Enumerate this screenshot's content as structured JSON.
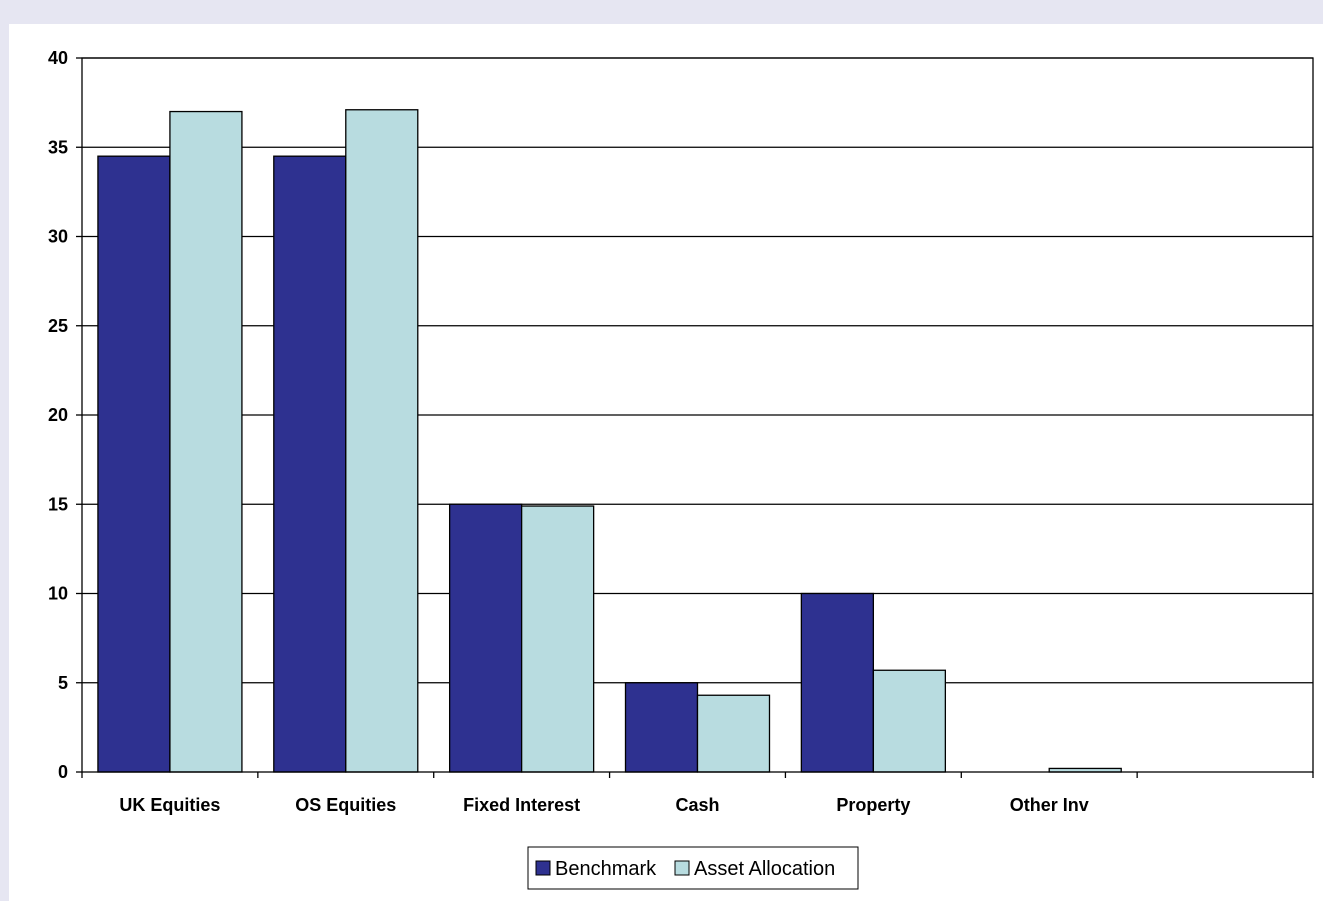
{
  "chart_data": {
    "type": "bar",
    "title": "",
    "xlabel": "",
    "ylabel": "",
    "ylim": [
      0,
      40
    ],
    "ytick_step": 5,
    "grid": true,
    "legend_position": "bottom-center",
    "categories": [
      "UK Equities",
      "OS Equities",
      "Fixed Interest",
      "Cash",
      "Property",
      "Other Inv",
      ""
    ],
    "series": [
      {
        "name": "Benchmark",
        "color": "#2e3190",
        "values": [
          34.5,
          34.5,
          15.0,
          5.0,
          10.0,
          0.0,
          null
        ]
      },
      {
        "name": "Asset Allocation",
        "color": "#b8dce0",
        "values": [
          37.0,
          37.1,
          14.9,
          4.3,
          5.7,
          0.2,
          null
        ]
      }
    ]
  }
}
